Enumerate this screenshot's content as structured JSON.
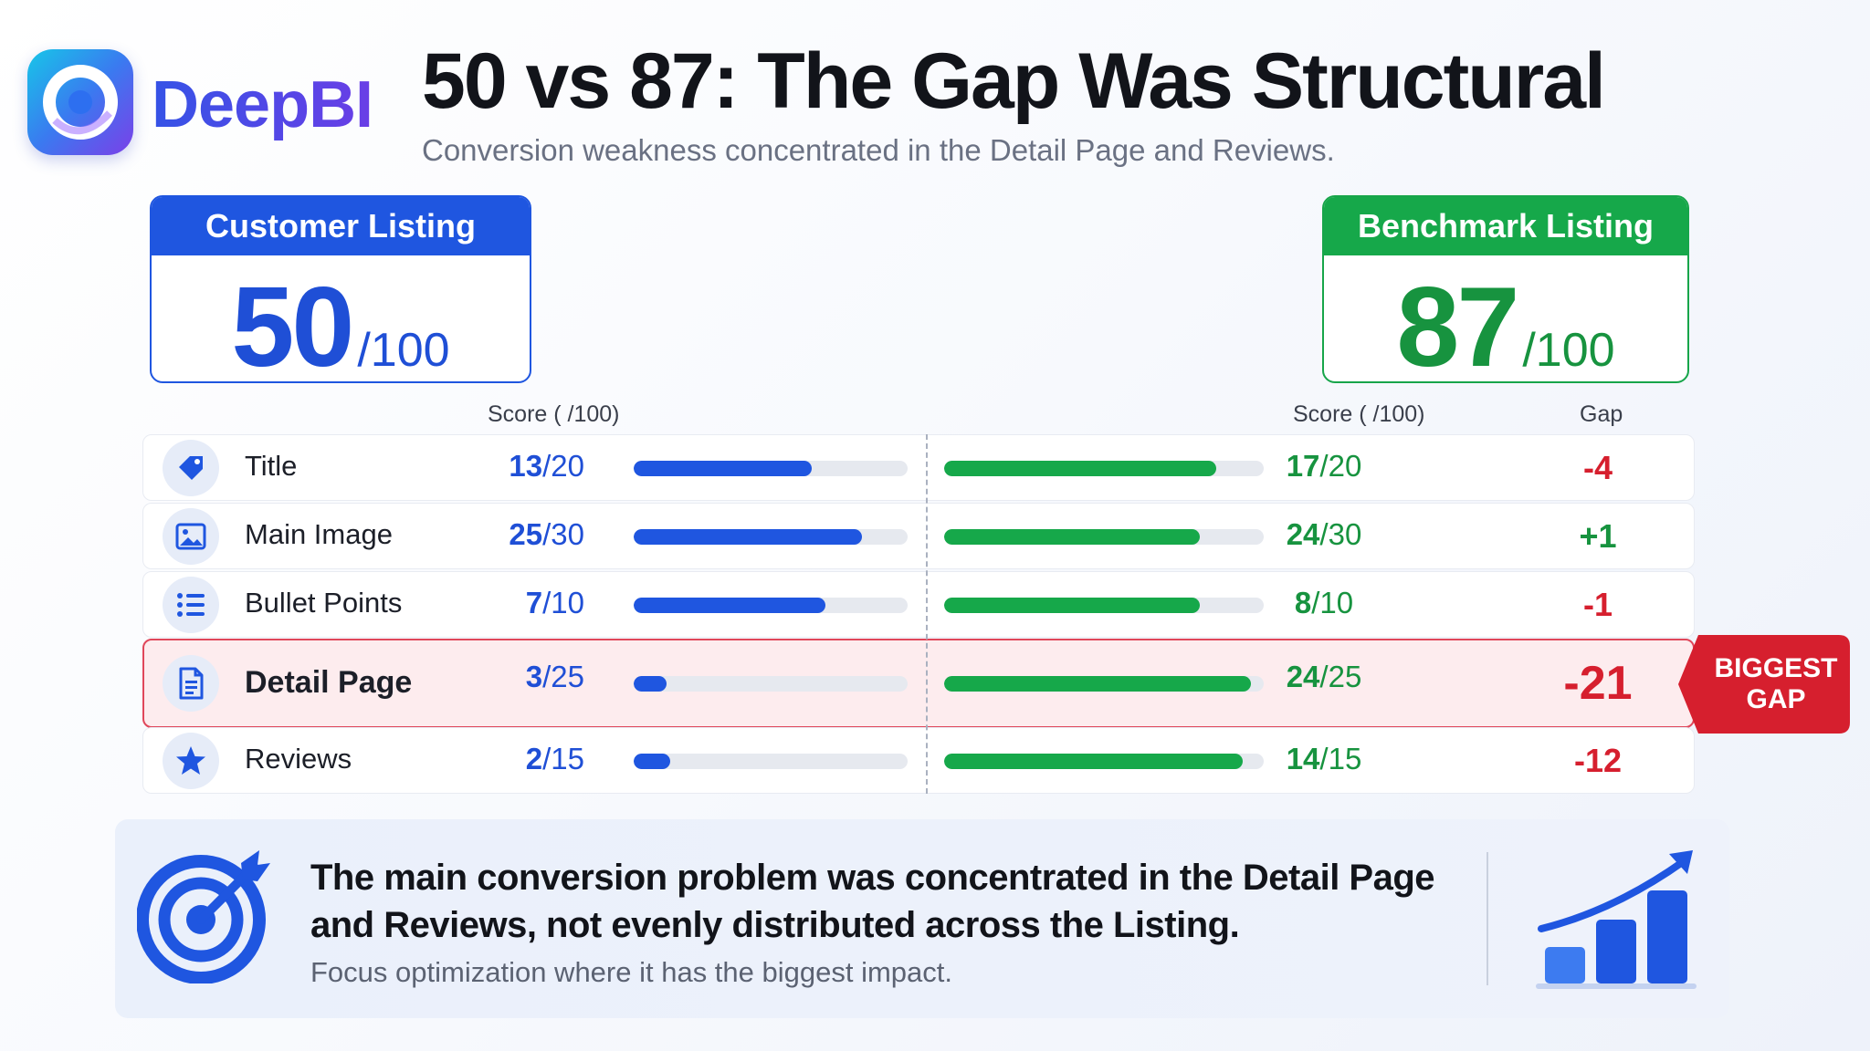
{
  "brand": {
    "name": "DeepBI",
    "logo_icon": "deepbi-logo-icon"
  },
  "header": {
    "title": "50 vs 87: The Gap Was Structural",
    "subtitle": "Conversion weakness concentrated in the Detail Page and Reviews."
  },
  "customer_card": {
    "label": "Customer Listing",
    "score": "50",
    "max": "/100",
    "color": "#1f56e0"
  },
  "benchmark_card": {
    "label": "Benchmark Listing",
    "score": "87",
    "max": "/100",
    "color": "#16a84a"
  },
  "columns": {
    "customer_score_label": "Score ( /100)",
    "benchmark_score_label": "Score ( /100)",
    "gap_label": "Gap"
  },
  "rows": [
    {
      "label": "Title",
      "icon": "tag-icon",
      "cust_score": "13",
      "cust_max": "/20",
      "cust_fraction": 0.65,
      "bench_score": "17",
      "bench_max": "/20",
      "bench_fraction": 0.85,
      "gap": "-4",
      "gap_sign": "neg"
    },
    {
      "label": "Main Image",
      "icon": "image-icon",
      "cust_score": "25",
      "cust_max": "/30",
      "cust_fraction": 0.8333,
      "bench_score": "24",
      "bench_max": "/30",
      "bench_fraction": 0.8,
      "gap": "+1",
      "gap_sign": "pos"
    },
    {
      "label": "Bullet Points",
      "icon": "list-icon",
      "cust_score": "7",
      "cust_max": "/10",
      "cust_fraction": 0.7,
      "bench_score": "8",
      "bench_max": "/10",
      "bench_fraction": 0.8,
      "gap": "-1",
      "gap_sign": "neg"
    },
    {
      "label": "Detail Page",
      "icon": "document-icon",
      "cust_score": "3",
      "cust_max": "/25",
      "cust_fraction": 0.12,
      "bench_score": "24",
      "bench_max": "/25",
      "bench_fraction": 0.96,
      "gap": "-21",
      "gap_sign": "neg",
      "highlight": true
    },
    {
      "label": "Reviews",
      "icon": "star-icon",
      "cust_score": "2",
      "cust_max": "/15",
      "cust_fraction": 0.1333,
      "bench_score": "14",
      "bench_max": "/15",
      "bench_fraction": 0.9333,
      "gap": "-12",
      "gap_sign": "neg"
    }
  ],
  "callout": {
    "line1": "BIGGEST",
    "line2": "GAP",
    "color": "#d61f2e"
  },
  "summary": {
    "headline": "The main conversion problem was concentrated in the Detail Page and Reviews, not evenly distributed across the Listing.",
    "subtext": "Focus optimization where it has the biggest impact.",
    "left_icon": "target-icon",
    "right_icon": "growth-chart-icon"
  }
}
